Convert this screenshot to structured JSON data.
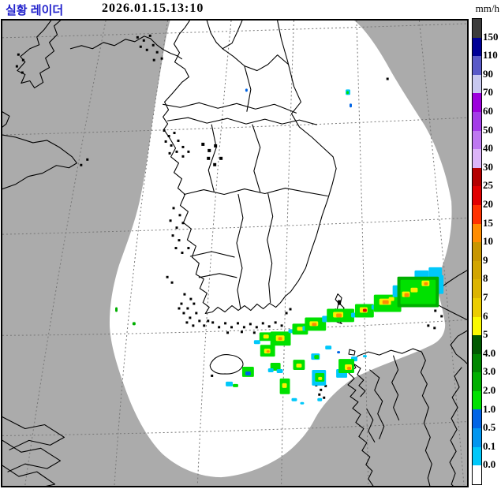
{
  "header": {
    "title": "실황 레이더",
    "timestamp": "2026.01.15.13:10",
    "unit": "mm/h",
    "title_color": "#2222CC"
  },
  "map": {
    "outside_color": "#ABABAB",
    "coverage_color": "#FFFFFF",
    "coast_color": "#000000",
    "grid_color": "#777777"
  },
  "legend": {
    "unit": "mm/h",
    "segments": [
      {
        "color": "#3C3C3C",
        "label": "150"
      },
      {
        "color": "#000096",
        "label": "110"
      },
      {
        "color": "#5A5AC8",
        "label": "90"
      },
      {
        "color": "#C8C8F0",
        "label": "70"
      },
      {
        "color": "#9C00DC",
        "label": "60"
      },
      {
        "color": "#A43CE8",
        "label": "50"
      },
      {
        "color": "#BE78F0",
        "label": "40"
      },
      {
        "color": "#DCB4F8",
        "label": "30"
      },
      {
        "color": "#B40000",
        "label": "25"
      },
      {
        "color": "#E10000",
        "label": "20"
      },
      {
        "color": "#FF3200",
        "label": "15"
      },
      {
        "color": "#FF8C00",
        "label": "10"
      },
      {
        "color": "#C89600",
        "label": "9"
      },
      {
        "color": "#D2A500",
        "label": "8"
      },
      {
        "color": "#DCB400",
        "label": "7"
      },
      {
        "color": "#EBCD00",
        "label": "6"
      },
      {
        "color": "#FAFA00",
        "label": "5"
      },
      {
        "color": "#005A00",
        "label": "4.0"
      },
      {
        "color": "#008700",
        "label": "3.0"
      },
      {
        "color": "#00AF00",
        "label": "2.0"
      },
      {
        "color": "#00E100",
        "label": "1.0"
      },
      {
        "color": "#0064E6",
        "label": "0.5"
      },
      {
        "color": "#0096F0",
        "label": "0.1"
      },
      {
        "color": "#00C8FA",
        "label": "0.0"
      },
      {
        "color": "#FFFFFF",
        "label": ""
      }
    ]
  },
  "radar": {
    "palette": {
      "c": "#00C8FA",
      "b": "#0064E6",
      "g1": "#00E100",
      "g2": "#00AF00",
      "y": "#FAF000",
      "o": "#FF8C00",
      "r": "#E10000"
    },
    "cells": [
      [
        "c",
        322,
        432,
        8,
        5
      ],
      [
        "g1",
        329,
        422,
        15,
        11
      ],
      [
        "y",
        334,
        425,
        7,
        5
      ],
      [
        "g1",
        343,
        421,
        26,
        18
      ],
      [
        "y",
        350,
        426,
        11,
        7
      ],
      [
        "o",
        353,
        428,
        5,
        4
      ],
      [
        "c",
        366,
        418,
        7,
        5
      ],
      [
        "g1",
        371,
        411,
        20,
        14
      ],
      [
        "y",
        377,
        415,
        8,
        5
      ],
      [
        "c",
        384,
        414,
        8,
        6
      ],
      [
        "g1",
        387,
        403,
        27,
        17
      ],
      [
        "y",
        393,
        408,
        11,
        6
      ],
      [
        "o",
        396,
        410,
        6,
        4
      ],
      [
        "c",
        409,
        401,
        12,
        8
      ],
      [
        "g1",
        415,
        392,
        35,
        17
      ],
      [
        "y",
        423,
        396,
        13,
        7
      ],
      [
        "o",
        427,
        398,
        7,
        5
      ],
      [
        "c",
        446,
        397,
        9,
        6
      ],
      [
        "g1",
        451,
        386,
        24,
        17
      ],
      [
        "y",
        457,
        390,
        10,
        7
      ],
      [
        "r",
        461,
        392,
        5,
        4
      ],
      [
        "c",
        472,
        387,
        9,
        6
      ],
      [
        "g1",
        475,
        374,
        35,
        22
      ],
      [
        "y",
        482,
        379,
        15,
        8
      ],
      [
        "o",
        486,
        381,
        8,
        5
      ],
      [
        "y",
        494,
        377,
        7,
        5
      ],
      [
        "c",
        499,
        362,
        10,
        15
      ],
      [
        "c",
        527,
        343,
        18,
        10
      ],
      [
        "c",
        545,
        339,
        17,
        13
      ],
      [
        "c",
        551,
        349,
        13,
        24
      ],
      [
        "g2",
        505,
        351,
        53,
        39
      ],
      [
        "g1",
        509,
        355,
        45,
        31
      ],
      [
        "y",
        511,
        370,
        10,
        7
      ],
      [
        "o",
        514,
        372,
        6,
        5
      ],
      [
        "y",
        522,
        365,
        9,
        6
      ],
      [
        "y",
        536,
        356,
        10,
        7
      ],
      [
        "o",
        539,
        358,
        5,
        4
      ],
      [
        "g1",
        330,
        438,
        19,
        15
      ],
      [
        "y",
        335,
        443,
        8,
        6
      ],
      [
        "o",
        338,
        445,
        4,
        3
      ],
      [
        "g1",
        343,
        461,
        13,
        10
      ],
      [
        "c",
        340,
        468,
        7,
        5
      ],
      [
        "g1",
        355,
        481,
        13,
        20
      ],
      [
        "y",
        358,
        487,
        6,
        6
      ],
      [
        "g1",
        372,
        457,
        15,
        13
      ],
      [
        "y",
        376,
        462,
        7,
        5
      ],
      [
        "c",
        395,
        449,
        11,
        8
      ],
      [
        "g1",
        399,
        451,
        6,
        5
      ],
      [
        "c",
        396,
        470,
        18,
        20
      ],
      [
        "g1",
        400,
        474,
        12,
        11
      ],
      [
        "y",
        404,
        479,
        5,
        4
      ],
      [
        "c",
        427,
        469,
        14,
        11
      ],
      [
        "c",
        446,
        453,
        8,
        6
      ],
      [
        "g1",
        430,
        456,
        20,
        18
      ],
      [
        "y",
        438,
        463,
        9,
        7
      ],
      [
        "o",
        441,
        466,
        5,
        4
      ],
      [
        "g1",
        307,
        466,
        15,
        13
      ],
      [
        "b",
        311,
        472,
        7,
        5
      ],
      [
        "c",
        286,
        485,
        9,
        6
      ],
      [
        "g1",
        295,
        488,
        7,
        4
      ],
      [
        "g2",
        145,
        390,
        3,
        6
      ],
      [
        "g2",
        167,
        409,
        4,
        4
      ],
      [
        "b",
        311,
        111,
        3,
        4
      ],
      [
        "c",
        439,
        112,
        6,
        7
      ],
      [
        "g1",
        440,
        114,
        3,
        4
      ],
      [
        "b",
        444,
        130,
        3,
        5
      ],
      [
        "c",
        413,
        439,
        8,
        5
      ],
      [
        "c",
        461,
        451,
        5,
        3
      ],
      [
        "c",
        370,
        506,
        7,
        4
      ],
      [
        "c",
        381,
        511,
        5,
        3
      ],
      [
        "c",
        403,
        506,
        6,
        4
      ],
      [
        "c",
        351,
        469,
        8,
        5
      ],
      [
        "b",
        428,
        446,
        4,
        3
      ]
    ]
  }
}
